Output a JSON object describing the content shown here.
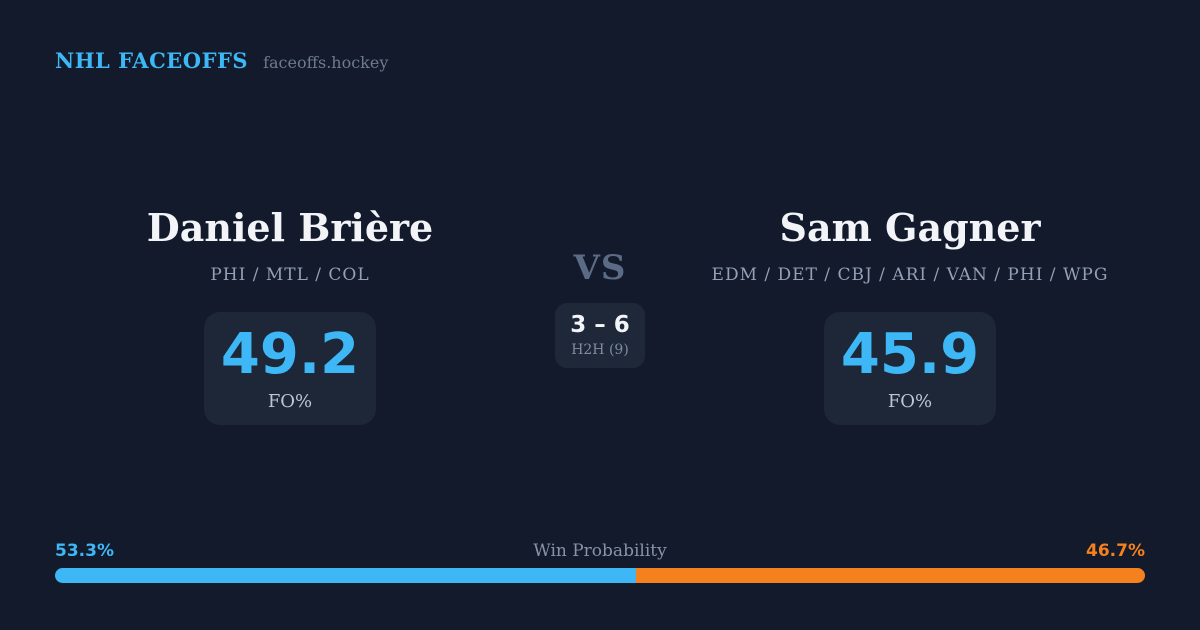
{
  "header": {
    "brand": "NHL FACEOFFS",
    "site": "faceoffs.hockey"
  },
  "matchup": {
    "vs_label": "VS",
    "h2h": {
      "score": "3 – 6",
      "label": "H2H (9)"
    },
    "player_left": {
      "name": "Daniel Brière",
      "teams": "PHI / MTL / COL",
      "fo_value": "49.2",
      "fo_label": "FO%"
    },
    "player_right": {
      "name": "Sam Gagner",
      "teams": "EDM / DET / CBJ / ARI / VAN / PHI / WPG",
      "fo_value": "45.9",
      "fo_label": "FO%"
    }
  },
  "win_probability": {
    "title": "Win Probability",
    "left_label": "53.3%",
    "right_label": "46.7%",
    "left_value": 53.3,
    "right_value": 46.7
  },
  "colors": {
    "background": "#121a2b",
    "card": "#1d2737",
    "accent_blue": "#3db7f5",
    "accent_orange": "#f5801e"
  }
}
